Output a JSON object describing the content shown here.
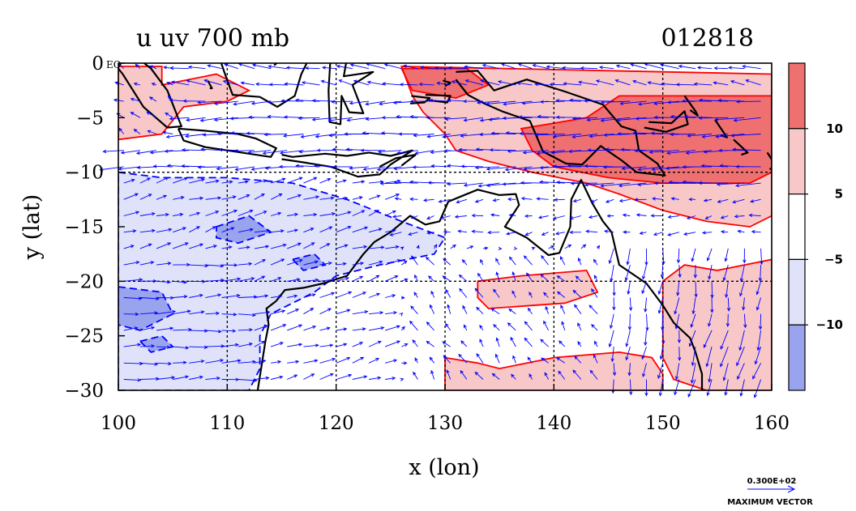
{
  "chart_data": {
    "type": "heatmap",
    "title": "u uv 700 mb",
    "timestamp": "012818",
    "xlabel": "x (lon)",
    "ylabel": "y (lat)",
    "xlim": [
      100,
      160
    ],
    "ylim": [
      -30,
      0
    ],
    "x_ticks": [
      100,
      110,
      120,
      130,
      140,
      150,
      160
    ],
    "x_tick_labels": [
      "100",
      "110",
      "120",
      "130",
      "140",
      "150",
      "160"
    ],
    "y_ticks": [
      0,
      -5,
      -10,
      -15,
      -20,
      -25,
      -30
    ],
    "y_tick_labels": [
      "0 EQ",
      "−5",
      "−10",
      "−15",
      "−20",
      "−25",
      "−30"
    ],
    "grid": true,
    "colorbar": {
      "levels": [
        -10,
        -5,
        5,
        10
      ],
      "labels": [
        "−10",
        "−5",
        "5",
        "10"
      ],
      "colors": [
        "#9aa4ee",
        "#dfe2f8",
        "#ffffff",
        "#f8c8c8",
        "#ef7070"
      ]
    },
    "contour_colors": {
      "positive": "#ff0000",
      "negative": "#0000ff",
      "coast": "#000000",
      "vectors": "#0000ff"
    },
    "regions": [
      {
        "name": "strong-easterly",
        "level": 2,
        "polygon": [
          [
            146,
            -3
          ],
          [
            160,
            -3
          ],
          [
            160,
            -10
          ],
          [
            158,
            -11
          ],
          [
            150,
            -11
          ],
          [
            145,
            -10.5
          ],
          [
            140,
            -9.5
          ],
          [
            138,
            -8
          ],
          [
            137,
            -6
          ],
          [
            140,
            -5.5
          ],
          [
            143,
            -5
          ]
        ]
      },
      {
        "name": "strong-easterly-north",
        "level": 2,
        "polygon": [
          [
            126,
            -0.5
          ],
          [
            132,
            -0.5
          ],
          [
            134,
            -2
          ],
          [
            131,
            -3.2
          ],
          [
            127,
            -2.5
          ]
        ]
      },
      {
        "name": "easterly-band",
        "level": 1,
        "polygon": [
          [
            126,
            -0.3
          ],
          [
            160,
            -1
          ],
          [
            160,
            -14
          ],
          [
            158,
            -15
          ],
          [
            154,
            -14.5
          ],
          [
            150,
            -13.5
          ],
          [
            146,
            -12
          ],
          [
            143,
            -11
          ],
          [
            138,
            -10
          ],
          [
            134,
            -9
          ],
          [
            131,
            -8
          ],
          [
            130,
            -6.5
          ],
          [
            128,
            -4.5
          ],
          [
            127,
            -3
          ]
        ]
      },
      {
        "name": "easterly-northwest",
        "level": 1,
        "polygon": [
          [
            100,
            -0.3
          ],
          [
            104,
            -0.3
          ],
          [
            104,
            -2
          ],
          [
            109,
            -1
          ],
          [
            112,
            -2.5
          ],
          [
            110,
            -3.5
          ],
          [
            106,
            -4
          ],
          [
            104,
            -6.5
          ],
          [
            100,
            -7
          ]
        ]
      },
      {
        "name": "easterly-coral-sea",
        "level": 1,
        "polygon": [
          [
            150,
            -20
          ],
          [
            152,
            -18.5
          ],
          [
            155,
            -19
          ],
          [
            160,
            -18
          ],
          [
            160,
            -30
          ],
          [
            154,
            -30
          ],
          [
            151,
            -29
          ],
          [
            150,
            -27
          ]
        ]
      },
      {
        "name": "easterly-central",
        "level": 1,
        "polygon": [
          [
            133,
            -20
          ],
          [
            137,
            -19.5
          ],
          [
            143,
            -19
          ],
          [
            144,
            -21
          ],
          [
            141,
            -22
          ],
          [
            134,
            -22.5
          ],
          [
            133,
            -21.5
          ]
        ]
      },
      {
        "name": "easterly-south",
        "level": 1,
        "polygon": [
          [
            130,
            -27
          ],
          [
            133,
            -27.5
          ],
          [
            135,
            -28
          ],
          [
            140,
            -27
          ],
          [
            146,
            -26.5
          ],
          [
            149,
            -27
          ],
          [
            150,
            -28.5
          ],
          [
            150,
            -30
          ],
          [
            130,
            -30
          ]
        ]
      },
      {
        "name": "westerly-band",
        "level": -1,
        "polygon": [
          [
            100,
            -10
          ],
          [
            104,
            -10.5
          ],
          [
            110,
            -10.5
          ],
          [
            116,
            -11
          ],
          [
            121,
            -12.5
          ],
          [
            126,
            -14.5
          ],
          [
            130,
            -16
          ],
          [
            129,
            -17.5
          ],
          [
            124,
            -18.5
          ],
          [
            120,
            -19.5
          ],
          [
            118,
            -21
          ],
          [
            116,
            -22
          ],
          [
            114,
            -23
          ],
          [
            113,
            -25
          ],
          [
            113,
            -28
          ],
          [
            112,
            -30
          ],
          [
            100,
            -30
          ]
        ]
      },
      {
        "name": "strong-westerly-1",
        "level": -2,
        "polygon": [
          [
            109,
            -15
          ],
          [
            112,
            -14
          ],
          [
            114,
            -15.5
          ],
          [
            111,
            -16.5
          ],
          [
            109,
            -16
          ]
        ]
      },
      {
        "name": "strong-westerly-2",
        "level": -2,
        "polygon": [
          [
            116,
            -18
          ],
          [
            118,
            -17.5
          ],
          [
            119,
            -18.5
          ],
          [
            117,
            -19
          ]
        ]
      },
      {
        "name": "strong-westerly-3",
        "level": -2,
        "polygon": [
          [
            100,
            -20.5
          ],
          [
            104,
            -21
          ],
          [
            105,
            -23
          ],
          [
            102,
            -24.5
          ],
          [
            100,
            -24
          ]
        ]
      },
      {
        "name": "strong-westerly-4",
        "level": -2,
        "polygon": [
          [
            102,
            -25.5
          ],
          [
            104,
            -25
          ],
          [
            105,
            -26
          ],
          [
            103,
            -26.5
          ]
        ]
      }
    ],
    "coastlines": [
      [
        [
          114.5,
          -21.8
        ],
        [
          115.3,
          -20.8
        ],
        [
          117,
          -20.6
        ],
        [
          118.8,
          -20.2
        ],
        [
          121,
          -19.5
        ],
        [
          122.5,
          -17.5
        ],
        [
          123.5,
          -16.4
        ],
        [
          125,
          -15.5
        ],
        [
          126.8,
          -14
        ],
        [
          128.2,
          -14.8
        ],
        [
          129.5,
          -14.5
        ],
        [
          130.3,
          -12.7
        ],
        [
          131.5,
          -12.2
        ],
        [
          133,
          -11.6
        ],
        [
          135,
          -12.1
        ],
        [
          136.5,
          -12
        ],
        [
          136.8,
          -13
        ],
        [
          135.5,
          -15
        ],
        [
          137.5,
          -16
        ],
        [
          139.5,
          -17.6
        ],
        [
          140.5,
          -17.4
        ],
        [
          141.5,
          -15
        ],
        [
          141.6,
          -12.5
        ],
        [
          142.5,
          -10.7
        ],
        [
          143.5,
          -12.8
        ],
        [
          144.5,
          -14.5
        ],
        [
          145.3,
          -15.5
        ],
        [
          146,
          -18.5
        ],
        [
          148.5,
          -20.2
        ],
        [
          150,
          -22.2
        ],
        [
          151,
          -23.8
        ],
        [
          152.5,
          -25.2
        ],
        [
          153,
          -26.5
        ],
        [
          153.6,
          -28.5
        ],
        [
          153.6,
          -30
        ]
      ],
      [
        [
          112.8,
          -30
        ],
        [
          113.5,
          -25.5
        ],
        [
          113.8,
          -24
        ],
        [
          113.6,
          -22.5
        ],
        [
          114.5,
          -21.8
        ]
      ],
      [
        [
          95,
          5.7
        ],
        [
          98,
          4.2
        ],
        [
          100.5,
          1.5
        ],
        [
          103,
          -0.5
        ],
        [
          104.5,
          -2.5
        ],
        [
          105.8,
          -5.8
        ],
        [
          104.5,
          -5.9
        ],
        [
          102.3,
          -4
        ],
        [
          100.4,
          -1
        ],
        [
          99.2,
          0.5
        ],
        [
          98.5,
          2
        ]
      ],
      [
        [
          105.5,
          -6
        ],
        [
          108,
          -6.2
        ],
        [
          111,
          -6.5
        ],
        [
          112.6,
          -6.9
        ],
        [
          114.5,
          -7.8
        ],
        [
          114,
          -8.6
        ],
        [
          112,
          -8.3
        ],
        [
          110,
          -8
        ],
        [
          108,
          -7.7
        ],
        [
          106,
          -7.1
        ],
        [
          105.5,
          -6
        ]
      ],
      [
        [
          115,
          -8.4
        ],
        [
          116,
          -8.6
        ],
        [
          119,
          -8.3
        ],
        [
          121,
          -8.5
        ],
        [
          123,
          -8.2
        ],
        [
          125,
          -8.5
        ],
        [
          127,
          -8
        ],
        [
          125,
          -9.3
        ],
        [
          124,
          -10.2
        ],
        [
          122,
          -10.4
        ],
        [
          119.5,
          -9.5
        ],
        [
          117,
          -9.1
        ],
        [
          115,
          -8.8
        ]
      ],
      [
        [
          124,
          -9.5
        ],
        [
          125.5,
          -8.7
        ],
        [
          127.3,
          -8.4
        ],
        [
          126,
          -9.4
        ]
      ],
      [
        [
          108.8,
          1.9
        ],
        [
          109.8,
          -1
        ],
        [
          110.5,
          -2.9
        ],
        [
          113,
          -3.1
        ],
        [
          114.6,
          -4
        ],
        [
          116.2,
          -3
        ],
        [
          116.8,
          -1
        ],
        [
          117.8,
          1
        ]
      ],
      [
        [
          119.5,
          0.7
        ],
        [
          119.3,
          -2.5
        ],
        [
          119.4,
          -5.4
        ],
        [
          120.4,
          -5.6
        ],
        [
          120.5,
          -3
        ],
        [
          121.2,
          -4.5
        ],
        [
          122.5,
          -4.6
        ],
        [
          121.5,
          -2
        ],
        [
          123.4,
          -0.8
        ],
        [
          120.7,
          -1.2
        ],
        [
          121,
          0.5
        ],
        [
          123.2,
          0.5
        ]
      ],
      [
        [
          131,
          -0.8
        ],
        [
          133,
          -0.7
        ],
        [
          134.5,
          -2.5
        ],
        [
          137.5,
          -1.5
        ],
        [
          141,
          -2.6
        ],
        [
          144.5,
          -3.8
        ],
        [
          146.2,
          -5.8
        ],
        [
          147.5,
          -6.2
        ],
        [
          147.8,
          -8
        ],
        [
          149.5,
          -9.2
        ],
        [
          150.2,
          -10.3
        ],
        [
          147.6,
          -10
        ],
        [
          146.2,
          -8.9
        ],
        [
          144.3,
          -7.6
        ],
        [
          142.6,
          -9.3
        ],
        [
          141.1,
          -9.2
        ],
        [
          139,
          -8.1
        ],
        [
          137.8,
          -5.3
        ],
        [
          135.2,
          -4.4
        ],
        [
          133.6,
          -3.7
        ],
        [
          132.1,
          -2.9
        ],
        [
          131,
          -1.5
        ]
      ],
      [
        [
          126.9,
          -3
        ],
        [
          128.6,
          -3.2
        ],
        [
          128.1,
          -3.6
        ],
        [
          126.8,
          -3.7
        ]
      ],
      [
        [
          128.2,
          -2.9
        ],
        [
          130.5,
          -3
        ],
        [
          130.2,
          -3.6
        ],
        [
          128.5,
          -3.4
        ]
      ],
      [
        [
          148.7,
          -5.4
        ],
        [
          150.8,
          -5.5
        ],
        [
          152,
          -4.4
        ],
        [
          152.3,
          -5.6
        ],
        [
          150.3,
          -6.3
        ],
        [
          148.3,
          -5.9
        ]
      ],
      [
        [
          152,
          -3
        ],
        [
          153,
          -4.4
        ],
        [
          153.2,
          -4.8
        ],
        [
          152.5,
          -4.3
        ]
      ],
      [
        [
          154.8,
          -5.2
        ],
        [
          155.9,
          -6.8
        ],
        [
          155.3,
          -6.6
        ]
      ],
      [
        [
          156.5,
          -7
        ],
        [
          157.8,
          -8.2
        ],
        [
          157.2,
          -8.4
        ]
      ],
      [
        [
          159.6,
          -8.2
        ],
        [
          160.5,
          -9.6
        ],
        [
          159.8,
          -9.7
        ]
      ],
      [
        [
          129.8,
          -1.6
        ],
        [
          130.5,
          -1.8
        ],
        [
          130,
          -2.1
        ]
      ],
      [
        [
          108.2,
          -1.6
        ],
        [
          108.6,
          -2.3
        ],
        [
          108.4,
          -2.3
        ]
      ],
      [
        [
          114.3,
          -0.2
        ],
        [
          115.5,
          0.8
        ],
        [
          114.1,
          0.9
        ]
      ]
    ],
    "vector_field": {
      "spacing_deg": 1.5,
      "dominant_direction": "easterly north of 15S, westerly south-west, southerly along east coast"
    },
    "reference_vector": {
      "value": "0.300E+02",
      "label": "MAXIMUM VECTOR"
    }
  }
}
